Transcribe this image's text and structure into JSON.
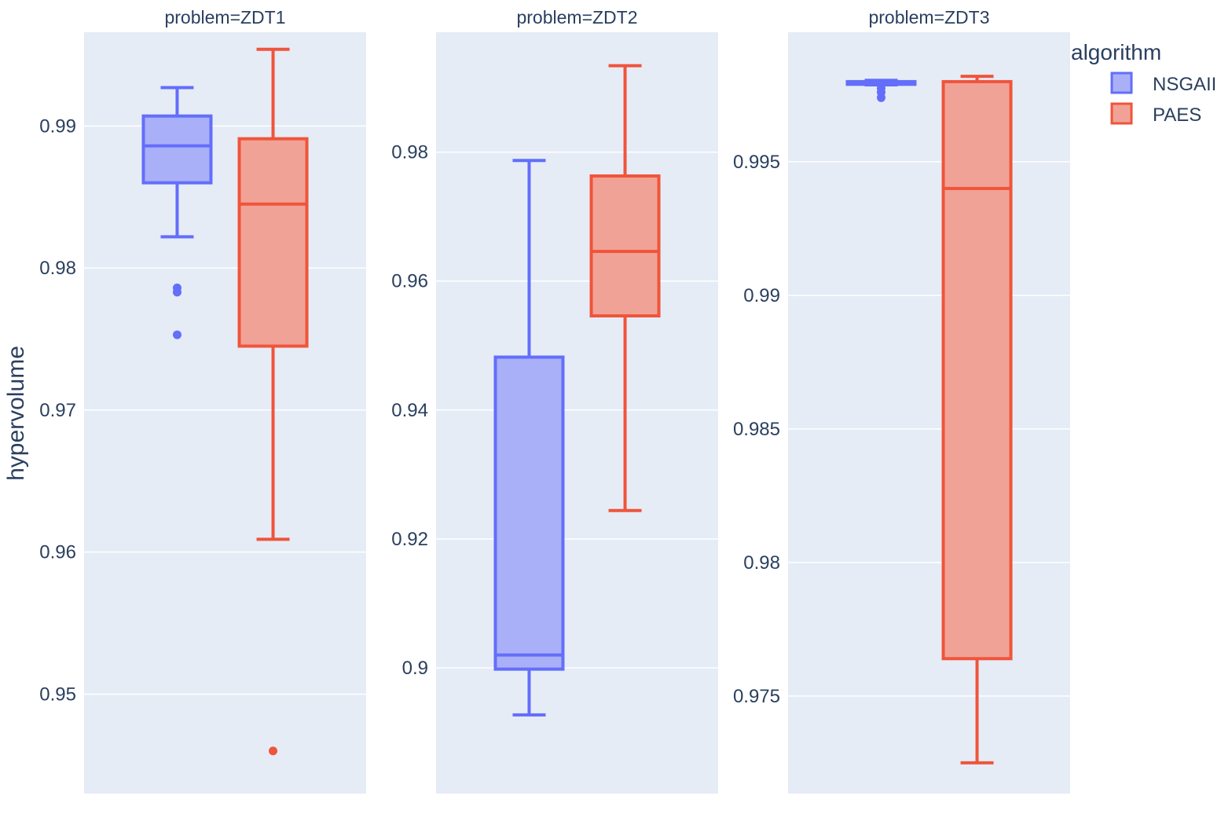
{
  "chart_data": {
    "type": "box",
    "ylabel": "hypervolume",
    "legend": {
      "title": "algorithm",
      "items": [
        {
          "name": "NSGAII",
          "color": "#636efa",
          "fill": "#aab0f8"
        },
        {
          "name": "PAES",
          "color": "#ef553b",
          "fill": "#f1a296"
        }
      ]
    },
    "grid": true,
    "panels": [
      {
        "title": "problem=ZDT1",
        "ylim": [
          0.943,
          0.9966
        ],
        "ticks": [
          {
            "value": 0.95,
            "label": "0.95"
          },
          {
            "value": 0.96,
            "label": "0.96"
          },
          {
            "value": 0.97,
            "label": "0.97"
          },
          {
            "value": 0.98,
            "label": "0.98"
          },
          {
            "value": 0.99,
            "label": "0.99"
          }
        ],
        "boxes": [
          {
            "series": "NSGAII",
            "whisker_low": 0.9822,
            "q1": 0.986,
            "median": 0.9886,
            "q3": 0.9907,
            "whisker_high": 0.9927,
            "outliers": [
              0.9786,
              0.9783,
              0.9753
            ]
          },
          {
            "series": "PAES",
            "whisker_low": 0.9609,
            "q1": 0.9745,
            "median": 0.9845,
            "q3": 0.9891,
            "whisker_high": 0.9954,
            "outliers": [
              0.946
            ]
          }
        ]
      },
      {
        "title": "problem=ZDT2",
        "ylim": [
          0.8805,
          0.9986
        ],
        "ticks": [
          {
            "value": 0.9,
            "label": "0.9"
          },
          {
            "value": 0.92,
            "label": "0.92"
          },
          {
            "value": 0.94,
            "label": "0.94"
          },
          {
            "value": 0.96,
            "label": "0.96"
          },
          {
            "value": 0.98,
            "label": "0.98"
          }
        ],
        "boxes": [
          {
            "series": "NSGAII",
            "whisker_low": 0.8927,
            "q1": 0.8998,
            "median": 0.902,
            "q3": 0.9482,
            "whisker_high": 0.9787,
            "outliers": []
          },
          {
            "series": "PAES",
            "whisker_low": 0.9244,
            "q1": 0.9546,
            "median": 0.9646,
            "q3": 0.9763,
            "whisker_high": 0.9934,
            "outliers": []
          }
        ]
      },
      {
        "title": "problem=ZDT3",
        "ylim": [
          0.97135,
          0.99985
        ],
        "ticks": [
          {
            "value": 0.975,
            "label": "0.975"
          },
          {
            "value": 0.98,
            "label": "0.98"
          },
          {
            "value": 0.985,
            "label": "0.985"
          },
          {
            "value": 0.99,
            "label": "0.99"
          },
          {
            "value": 0.995,
            "label": "0.995"
          }
        ],
        "boxes": [
          {
            "series": "NSGAII",
            "whisker_low": 0.99788,
            "q1": 0.9979,
            "median": 0.99795,
            "q3": 0.998,
            "whisker_high": 0.99805,
            "outliers": [
              0.99775,
              0.9976,
              0.9974
            ]
          },
          {
            "series": "PAES",
            "whisker_low": 0.9725,
            "q1": 0.9764,
            "median": 0.994,
            "q3": 0.998,
            "whisker_high": 0.9982,
            "outliers": []
          }
        ]
      }
    ]
  }
}
